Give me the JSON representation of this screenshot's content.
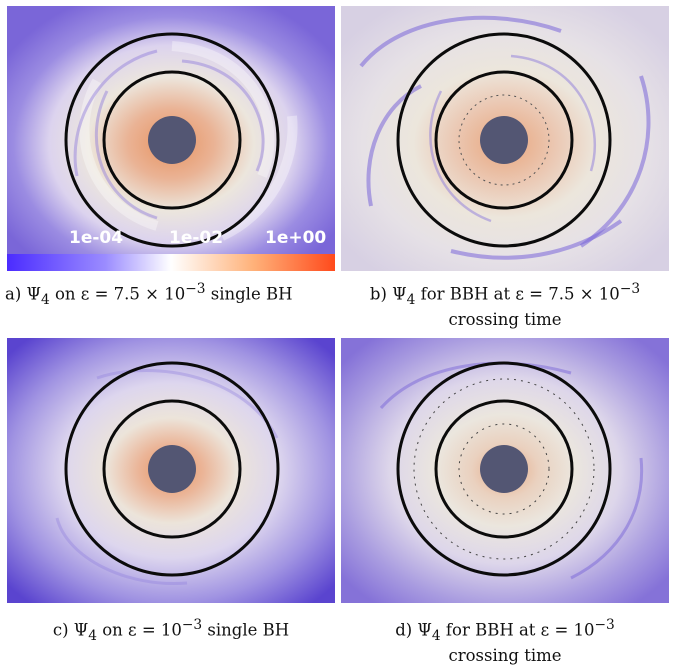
{
  "colors": {
    "purple": "#7a66d8",
    "lavender": "#c7c1ee",
    "cream": "#ece7dc",
    "peach": "#e8b899",
    "orange": "#e8895a",
    "black_hole": "#535673",
    "ring": "#0b0b0b"
  },
  "colorbar": {
    "tick_labels": [
      "1e-04",
      "1e-02",
      "1e+00"
    ],
    "colors": [
      "#4b2cff",
      "#8e80ff",
      "#ffffff",
      "#ffb27a",
      "#ff4a1c"
    ]
  },
  "panels": [
    {
      "id": "a",
      "caption_line1": "a) Ψ",
      "sub": "4",
      "caption_rest": " on ε = 7.5 × 10",
      "sup": "−3",
      "caption_tail": " single BH",
      "caption_line2": ""
    },
    {
      "id": "b",
      "caption_line1": "b) Ψ",
      "sub": "4",
      "caption_rest": " for BBH at ε = 7.5 × 10",
      "sup": "−3",
      "caption_tail": "",
      "caption_line2": "crossing time"
    },
    {
      "id": "c",
      "caption_line1": "c) Ψ",
      "sub": "4",
      "caption_rest": " on ε = 10",
      "sup": "−3",
      "caption_tail": " single BH",
      "caption_line2": ""
    },
    {
      "id": "d",
      "caption_line1": "d) Ψ",
      "sub": "4",
      "caption_rest": " for BBH at ε = 10",
      "sup": "−3",
      "caption_tail": "",
      "caption_line2": "crossing time"
    }
  ]
}
